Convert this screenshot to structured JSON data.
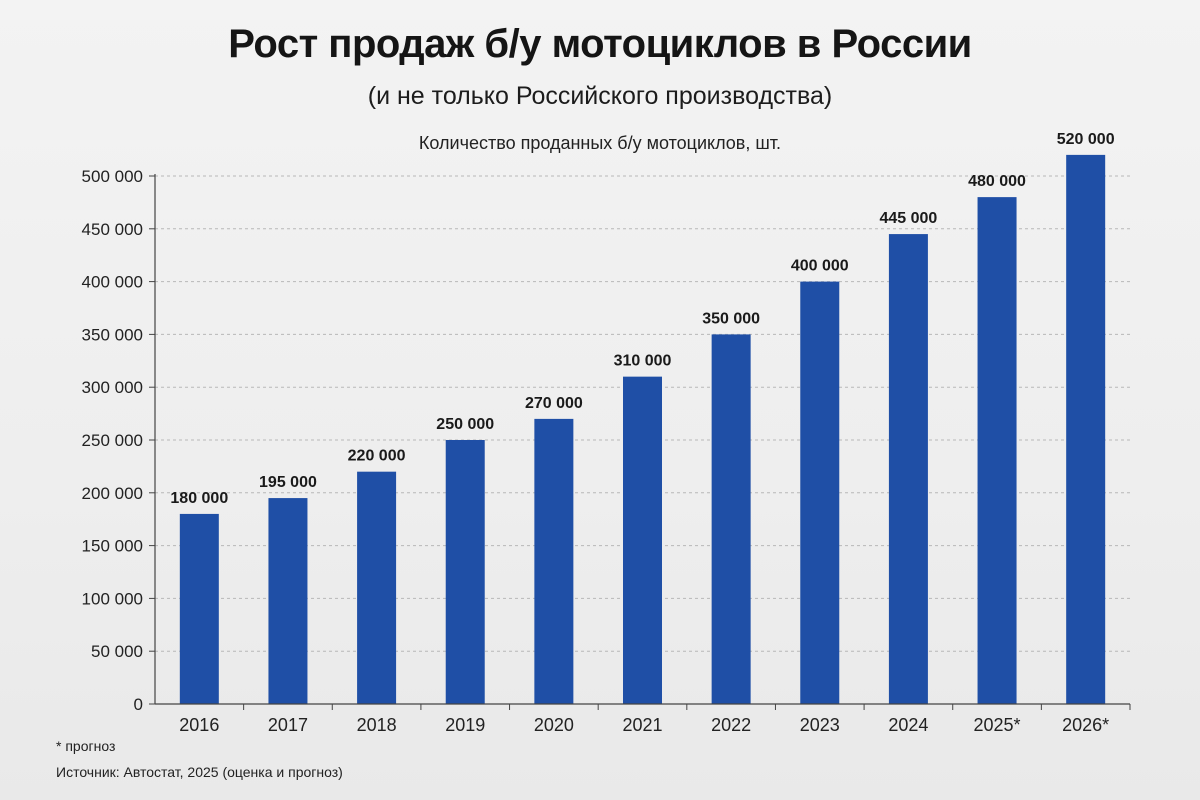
{
  "header": {
    "title": "Рост продаж б/у мотоциклов в России",
    "subtitle": "(и не только Российского производства)"
  },
  "footer": {
    "footnote": "* прогноз",
    "source": "Источник: Автостат, 2025 (оценка и прогноз)"
  },
  "colors": {
    "bar": "#1f4fa6",
    "grid": "#b8b8b8",
    "axis": "#444444"
  },
  "chart_data": {
    "type": "bar",
    "title": "Количество проданных б/у мотоциклов, шт.",
    "xlabel": "",
    "ylabel": "",
    "categories": [
      "2016",
      "2017",
      "2018",
      "2019",
      "2020",
      "2021",
      "2022",
      "2023",
      "2024",
      "2025*",
      "2026*"
    ],
    "values": [
      180000,
      195000,
      220000,
      250000,
      270000,
      310000,
      350000,
      400000,
      445000,
      480000,
      520000
    ],
    "data_labels": [
      "180 000",
      "195 000",
      "220 000",
      "250 000",
      "270 000",
      "310 000",
      "350 000",
      "400 000",
      "445 000",
      "480 000",
      "520 000"
    ],
    "ylim": [
      0,
      500000
    ],
    "yticks": [
      0,
      50000,
      100000,
      150000,
      200000,
      250000,
      300000,
      350000,
      400000,
      450000,
      500000
    ],
    "ytick_labels": [
      "0",
      "50 000",
      "100 000",
      "150 000",
      "200 000",
      "250 000",
      "300 000",
      "350 000",
      "400 000",
      "450 000",
      "500 000"
    ],
    "grid": true,
    "grid_style": "dashed horizontal",
    "legend": "none"
  }
}
